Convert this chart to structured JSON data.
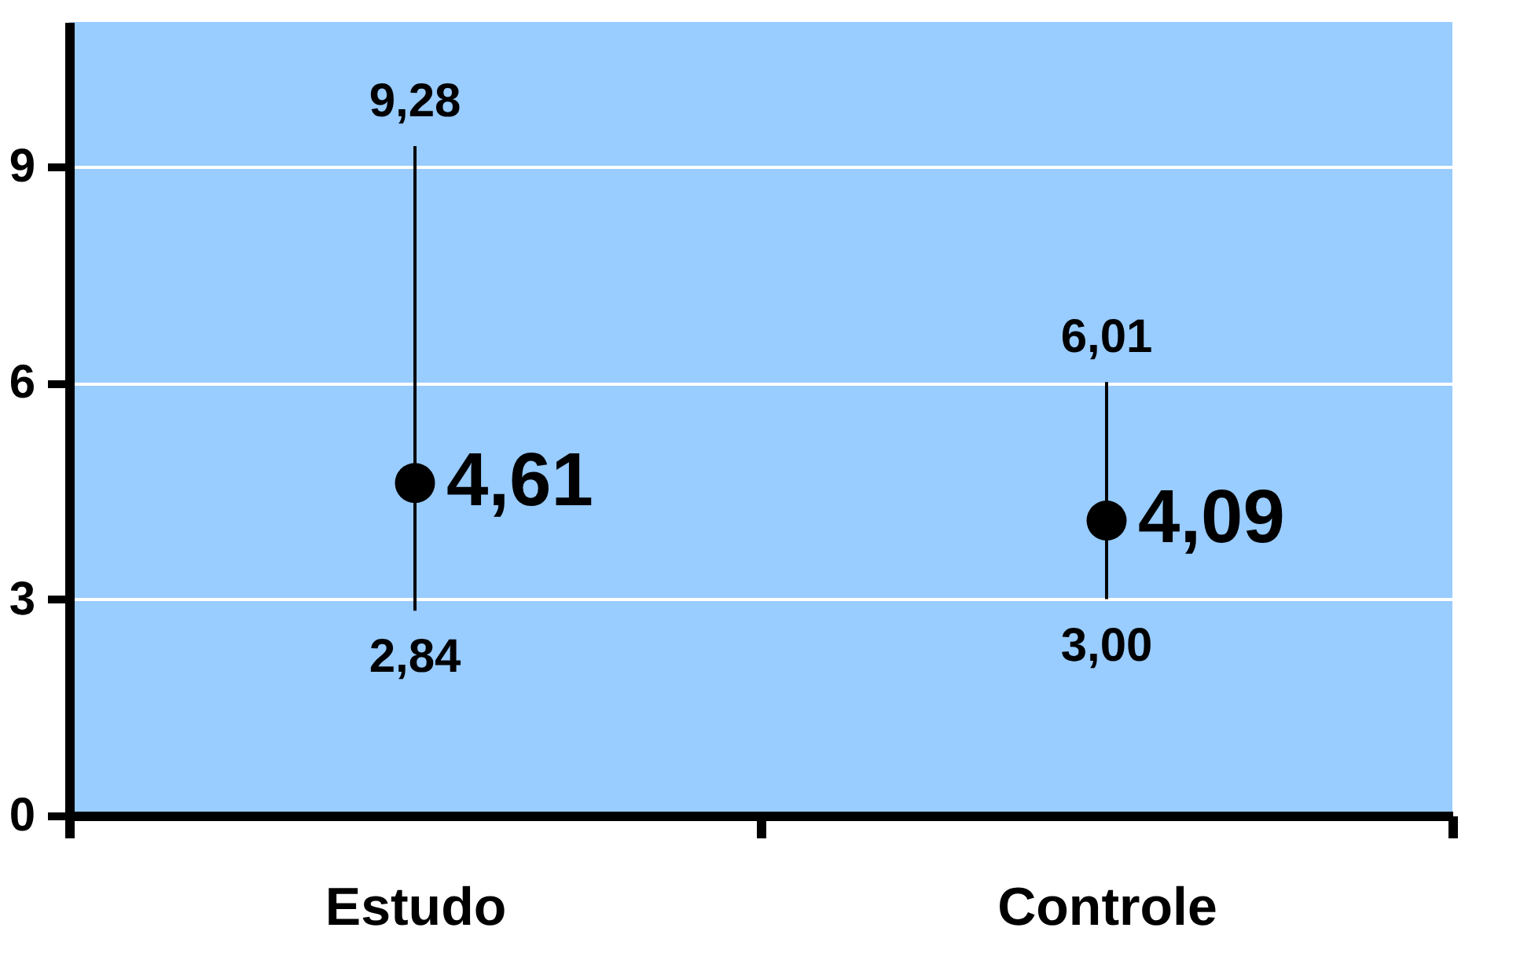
{
  "chart_data": {
    "type": "scatter",
    "categories": [
      "Estudo",
      "Controle"
    ],
    "series": [
      {
        "color": "#000000",
        "values": [
          4.61,
          4.09
        ],
        "errors": [
          [
            2.84,
            9.28
          ],
          [
            3.0,
            6.01
          ]
        ],
        "value_labels": [
          "4,61",
          "4,09"
        ]
      }
    ],
    "annotations": [
      {
        "text": "9,28",
        "x": "Estudo",
        "y": 9.28
      },
      {
        "text": "2,84",
        "x": "Estudo",
        "y": 2.84
      },
      {
        "text": "6,01",
        "x": "Controle",
        "y": 6.01
      },
      {
        "text": "3,00",
        "x": "Controle",
        "y": 3.0
      }
    ],
    "ylim": [
      0,
      11
    ],
    "yticks": [
      0,
      3,
      6,
      9
    ],
    "grid": "y",
    "marker": "circle"
  }
}
